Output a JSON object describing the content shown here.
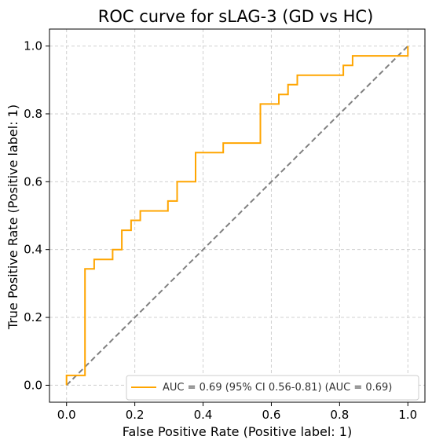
{
  "chart_data": {
    "type": "line",
    "title": "ROC curve for sLAG-3 (GD vs HC)",
    "xlabel": "False Positive Rate (Positive label: 1)",
    "ylabel": "True Positive Rate (Positive label: 1)",
    "xlim": [
      -0.05,
      1.05
    ],
    "ylim": [
      -0.05,
      1.05
    ],
    "x_ticks": [
      "0.0",
      "0.2",
      "0.4",
      "0.6",
      "0.8",
      "1.0"
    ],
    "y_ticks": [
      "0.0",
      "0.2",
      "0.4",
      "0.6",
      "0.8",
      "1.0"
    ],
    "grid": true,
    "legend_position": "lower right",
    "series": [
      {
        "name": "AUC = 0.69 (95% CI 0.56-0.81) (AUC = 0.69)",
        "color": "#FFA500",
        "style": "step",
        "points": [
          [
            0.0,
            0.0
          ],
          [
            0.0,
            0.029
          ],
          [
            0.054,
            0.029
          ],
          [
            0.054,
            0.343
          ],
          [
            0.081,
            0.343
          ],
          [
            0.081,
            0.371
          ],
          [
            0.135,
            0.371
          ],
          [
            0.135,
            0.4
          ],
          [
            0.162,
            0.4
          ],
          [
            0.162,
            0.457
          ],
          [
            0.189,
            0.457
          ],
          [
            0.189,
            0.486
          ],
          [
            0.216,
            0.486
          ],
          [
            0.216,
            0.514
          ],
          [
            0.297,
            0.514
          ],
          [
            0.297,
            0.543
          ],
          [
            0.324,
            0.543
          ],
          [
            0.324,
            0.6
          ],
          [
            0.378,
            0.6
          ],
          [
            0.378,
            0.686
          ],
          [
            0.459,
            0.686
          ],
          [
            0.459,
            0.714
          ],
          [
            0.568,
            0.714
          ],
          [
            0.568,
            0.829
          ],
          [
            0.622,
            0.829
          ],
          [
            0.622,
            0.857
          ],
          [
            0.649,
            0.857
          ],
          [
            0.649,
            0.886
          ],
          [
            0.676,
            0.886
          ],
          [
            0.676,
            0.914
          ],
          [
            0.811,
            0.914
          ],
          [
            0.811,
            0.943
          ],
          [
            0.838,
            0.943
          ],
          [
            0.838,
            0.971
          ],
          [
            1.0,
            0.971
          ],
          [
            1.0,
            1.0
          ]
        ]
      },
      {
        "name": "",
        "color": "#808080",
        "style": "dashed",
        "points": [
          [
            0.0,
            0.0
          ],
          [
            1.0,
            1.0
          ]
        ]
      }
    ]
  }
}
